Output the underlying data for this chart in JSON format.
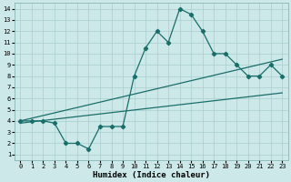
{
  "xlabel": "Humidex (Indice chaleur)",
  "bg_color": "#cce8e8",
  "line_color": "#1a6e6a",
  "xlim": [
    -0.5,
    23.5
  ],
  "ylim": [
    0.5,
    14.5
  ],
  "xticks": [
    0,
    1,
    2,
    3,
    4,
    5,
    6,
    7,
    8,
    9,
    10,
    11,
    12,
    13,
    14,
    15,
    16,
    17,
    18,
    19,
    20,
    21,
    22,
    23
  ],
  "yticks": [
    1,
    2,
    3,
    4,
    5,
    6,
    7,
    8,
    9,
    10,
    11,
    12,
    13,
    14
  ],
  "curve_x": [
    0,
    1,
    2,
    3,
    4,
    5,
    6,
    7,
    8,
    9,
    10,
    11,
    12,
    13,
    14,
    15,
    16,
    17,
    18,
    19,
    20,
    21,
    22,
    23
  ],
  "curve_y": [
    4,
    4,
    4,
    3.8,
    2,
    2,
    1.5,
    3.5,
    3.5,
    3.5,
    8,
    10.5,
    12,
    11,
    14,
    13.5,
    12,
    10,
    10,
    9,
    8,
    8,
    9,
    8
  ],
  "line1_x": [
    0,
    23
  ],
  "line1_y": [
    3.8,
    6.5
  ],
  "line2_x": [
    0,
    23
  ],
  "line2_y": [
    4.0,
    9.5
  ],
  "grid_color": "#aacece",
  "marker": "D",
  "markersize": 2.2,
  "linewidth": 0.9,
  "tick_fontsize": 5.0,
  "xlabel_fontsize": 6.5
}
